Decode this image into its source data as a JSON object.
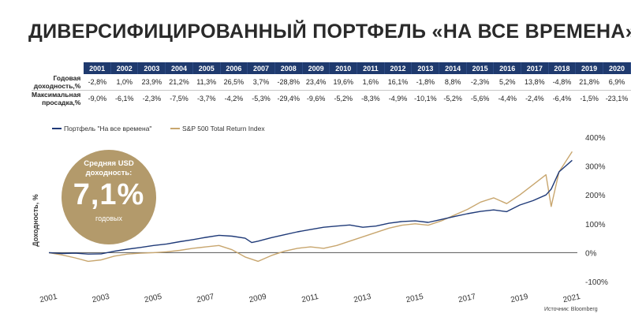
{
  "header": {
    "title": "ДИВЕРСИФИЦИРОВАННЫЙ ПОРТФЕЛЬ «НА ВСЕ ВРЕМЕНА»"
  },
  "table": {
    "years": [
      "2001",
      "2002",
      "2003",
      "2004",
      "2005",
      "2006",
      "2007",
      "2008",
      "2009",
      "2010",
      "2011",
      "2012",
      "2013",
      "2014",
      "2015",
      "2016",
      "2017",
      "2018",
      "2019",
      "2020"
    ],
    "rows": [
      {
        "label": "Годовая доходность,%",
        "values": [
          "-2,8%",
          "1,0%",
          "23,9%",
          "21,2%",
          "11,3%",
          "26,5%",
          "3,7%",
          "-28,8%",
          "23,4%",
          "19,6%",
          "1,6%",
          "16,1%",
          "-1,8%",
          "8,8%",
          "-2,3%",
          "5,2%",
          "13,8%",
          "-4,8%",
          "21,8%",
          "6,9%"
        ]
      },
      {
        "label": "Максимальная просадка,%",
        "values": [
          "-9,0%",
          "-6,1%",
          "-2,3%",
          "-7,5%",
          "-3,7%",
          "-4,2%",
          "-5,3%",
          "-29,4%",
          "-9,6%",
          "-5,2%",
          "-8,3%",
          "-4,9%",
          "-10,1%",
          "-5,2%",
          "-5,6%",
          "-4,4%",
          "-2,4%",
          "-6,4%",
          "-1,5%",
          "-23,1%"
        ]
      }
    ]
  },
  "callout": {
    "line1": "Средняя USD",
    "line2": "доходность:",
    "value": "7,1%",
    "suffix": "годовых"
  },
  "source": "Источник: Bloomberg",
  "colors": {
    "header_bg": "#1f3a6e",
    "portfolio": "#1f3a78",
    "sp500": "#c8a66e",
    "callout_bg": "#b39a6b"
  },
  "chart_data": {
    "type": "line",
    "title": "",
    "xlabel": "",
    "ylabel": "Доходность, %",
    "xlim": [
      2001,
      2021.2
    ],
    "ylim": [
      -100,
      400
    ],
    "x_ticks": [
      "2001",
      "2003",
      "2005",
      "2007",
      "2009",
      "2011",
      "2013",
      "2015",
      "2017",
      "2019",
      "2021"
    ],
    "y_ticks": [
      "400%",
      "300%",
      "200%",
      "100%",
      "0%",
      "-100%"
    ],
    "legend_position": "top-left",
    "series": [
      {
        "name": "Портфель \"На все времена\"",
        "x": [
          2001,
          2001.5,
          2002,
          2002.5,
          2003,
          2003.5,
          2004,
          2004.5,
          2005,
          2005.5,
          2006,
          2006.5,
          2007,
          2007.5,
          2008,
          2008.5,
          2008.75,
          2009,
          2009.5,
          2010,
          2010.5,
          2011,
          2011.5,
          2012,
          2012.5,
          2013,
          2013.5,
          2014,
          2014.5,
          2015,
          2015.5,
          2016,
          2016.5,
          2017,
          2017.5,
          2018,
          2018.5,
          2019,
          2019.5,
          2020,
          2020.2,
          2020.5,
          2021
        ],
        "values": [
          0,
          -3,
          -2,
          -5,
          -4,
          5,
          12,
          18,
          25,
          30,
          38,
          45,
          53,
          60,
          57,
          50,
          35,
          40,
          52,
          62,
          72,
          80,
          88,
          92,
          96,
          88,
          92,
          102,
          108,
          110,
          105,
          115,
          125,
          135,
          143,
          148,
          142,
          165,
          180,
          200,
          220,
          280,
          320
        ]
      },
      {
        "name": "S&P 500 Total Return Index",
        "x": [
          2001,
          2001.5,
          2002,
          2002.5,
          2003,
          2003.5,
          2004,
          2004.5,
          2005,
          2005.5,
          2006,
          2006.5,
          2007,
          2007.5,
          2008,
          2008.5,
          2009,
          2009.5,
          2010,
          2010.5,
          2011,
          2011.5,
          2012,
          2012.5,
          2013,
          2013.5,
          2014,
          2014.5,
          2015,
          2015.5,
          2016,
          2016.5,
          2017,
          2017.5,
          2018,
          2018.5,
          2019,
          2019.5,
          2020,
          2020.2,
          2020.5,
          2021
        ],
        "values": [
          0,
          -8,
          -18,
          -30,
          -25,
          -12,
          -5,
          -2,
          0,
          3,
          8,
          15,
          20,
          25,
          10,
          -15,
          -30,
          -10,
          5,
          15,
          20,
          15,
          25,
          40,
          55,
          70,
          85,
          95,
          100,
          95,
          110,
          130,
          150,
          175,
          190,
          170,
          200,
          235,
          270,
          160,
          280,
          350
        ]
      }
    ]
  }
}
